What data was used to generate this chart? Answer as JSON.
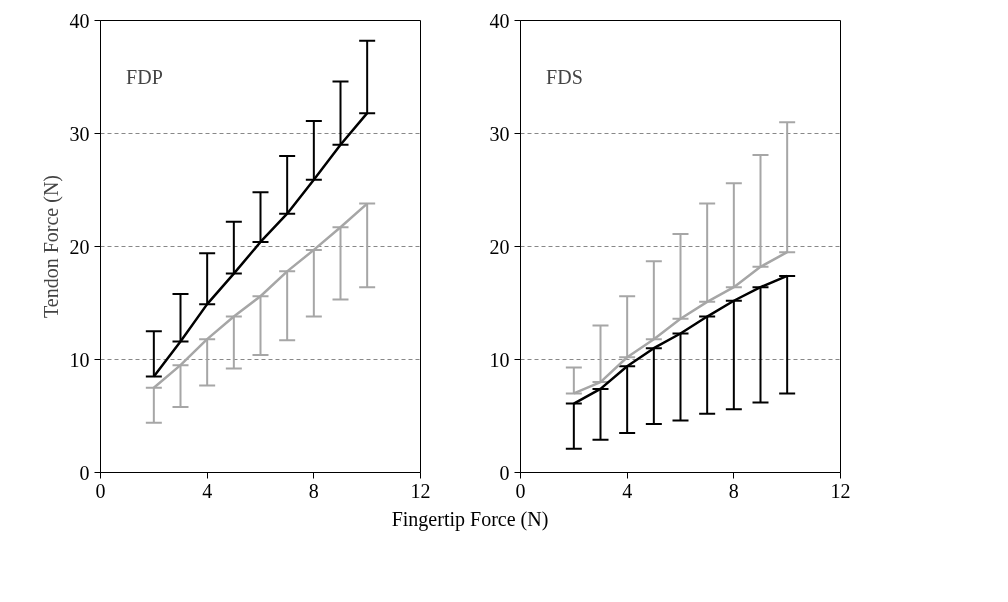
{
  "chart_data": [
    {
      "type": "line",
      "title": "FDP",
      "ylabel": "Tendon Force (N)",
      "xlabel": "Fingertip Force (N)",
      "x": [
        2,
        3,
        4,
        5,
        6,
        7,
        8,
        9,
        10
      ],
      "xlim": [
        0,
        12
      ],
      "xticks": [
        0,
        4,
        8,
        12
      ],
      "ylim": [
        0,
        40
      ],
      "yticks": [
        0,
        10,
        20,
        30,
        40
      ],
      "grid": "y",
      "series": [
        {
          "color": "#000000",
          "values": [
            8.5,
            11.6,
            14.9,
            17.6,
            20.4,
            22.9,
            25.9,
            29.0,
            31.8
          ],
          "errors": [
            [
              8.5,
              12.5
            ],
            [
              11.6,
              15.8
            ],
            [
              14.9,
              19.4
            ],
            [
              17.6,
              22.2
            ],
            [
              20.4,
              24.8
            ],
            [
              22.9,
              28.0
            ],
            [
              25.9,
              31.1
            ],
            [
              29.0,
              34.6
            ],
            [
              31.8,
              38.2
            ]
          ]
        },
        {
          "color": "#a6a6a6",
          "values": [
            7.5,
            9.5,
            11.8,
            13.8,
            15.6,
            17.8,
            19.7,
            21.7,
            23.8
          ],
          "errors": [
            [
              4.4,
              7.5
            ],
            [
              5.8,
              9.5
            ],
            [
              7.7,
              11.8
            ],
            [
              9.2,
              13.8
            ],
            [
              10.4,
              15.6
            ],
            [
              11.7,
              17.8
            ],
            [
              13.8,
              19.7
            ],
            [
              15.3,
              21.7
            ],
            [
              16.4,
              23.8
            ]
          ]
        }
      ]
    },
    {
      "type": "line",
      "title": "FDS",
      "x": [
        2,
        3,
        4,
        5,
        6,
        7,
        8,
        9,
        10
      ],
      "xlim": [
        0,
        12
      ],
      "xticks": [
        0,
        4,
        8,
        12
      ],
      "ylim": [
        0,
        40
      ],
      "yticks": [
        0,
        10,
        20,
        30,
        40
      ],
      "grid": "y",
      "series": [
        {
          "color": "#a6a6a6",
          "values": [
            7.0,
            8.0,
            10.2,
            11.8,
            13.6,
            15.1,
            16.4,
            18.2,
            19.5
          ],
          "errors": [
            [
              7.0,
              9.3
            ],
            [
              8.0,
              13.0
            ],
            [
              10.2,
              15.6
            ],
            [
              11.8,
              18.7
            ],
            [
              13.6,
              21.1
            ],
            [
              15.1,
              23.8
            ],
            [
              16.4,
              25.6
            ],
            [
              18.2,
              28.1
            ],
            [
              19.5,
              31.0
            ]
          ]
        },
        {
          "color": "#000000",
          "values": [
            6.1,
            7.4,
            9.4,
            11.0,
            12.3,
            13.8,
            15.2,
            16.4,
            17.4
          ],
          "errors": [
            [
              2.1,
              6.1
            ],
            [
              2.9,
              7.4
            ],
            [
              3.5,
              9.4
            ],
            [
              4.3,
              11.0
            ],
            [
              4.6,
              12.3
            ],
            [
              5.2,
              13.8
            ],
            [
              5.6,
              15.2
            ],
            [
              6.2,
              16.4
            ],
            [
              7.0,
              17.4
            ]
          ]
        }
      ]
    }
  ]
}
